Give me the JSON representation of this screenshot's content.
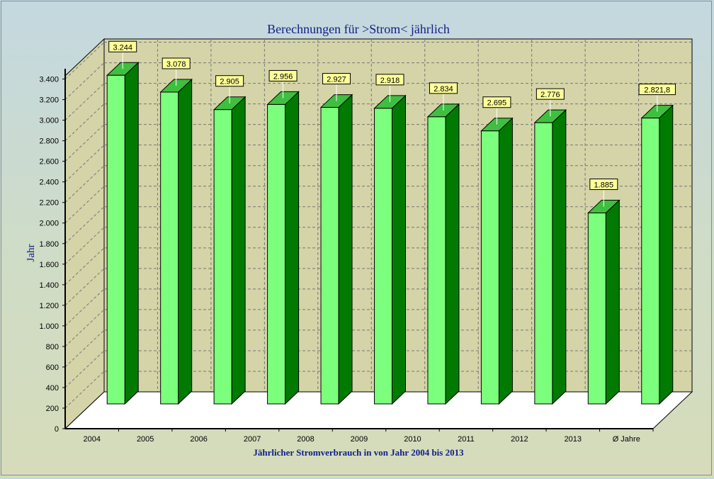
{
  "chart_data": {
    "type": "bar",
    "title": "Berechnungen für >Strom< jährlich",
    "xlabel": "Jährlicher Stromverbrauch in  von Jahr 2004 bis 2013",
    "ylabel": "Jahr",
    "categories": [
      "2004",
      "2005",
      "2006",
      "2007",
      "2008",
      "2009",
      "2010",
      "2011",
      "2012",
      "2013",
      "Ø Jahre"
    ],
    "values": [
      3244,
      3078,
      2905,
      2956,
      2927,
      2918,
      2834,
      2695,
      2776,
      1885,
      2821.8
    ],
    "data_labels": [
      "3.244",
      "3.078",
      "2.905",
      "2.956",
      "2.927",
      "2.918",
      "2.834",
      "2.695",
      "2.776",
      "1.885",
      "2.821,8"
    ],
    "ylim": [
      0,
      3500
    ],
    "yticks": [
      0,
      200,
      400,
      600,
      800,
      1000,
      1200,
      1400,
      1600,
      1800,
      2000,
      2200,
      2400,
      2600,
      2800,
      3000,
      3200,
      3400
    ],
    "ytick_labels": [
      "0",
      "200",
      "400",
      "600",
      "800",
      "1.000",
      "1.200",
      "1.400",
      "1.600",
      "1.800",
      "2.000",
      "2.200",
      "2.400",
      "2.600",
      "2.800",
      "3.000",
      "3.200",
      "3.400"
    ],
    "grid": true,
    "style": "3d",
    "colors": {
      "bar_front": "#7cff7c",
      "bar_side": "#007a00",
      "bar_top": "#3fbf3f",
      "back_wall": "#d4d4a8",
      "floor": "#ffffff",
      "label_box": "#ffff99"
    }
  }
}
